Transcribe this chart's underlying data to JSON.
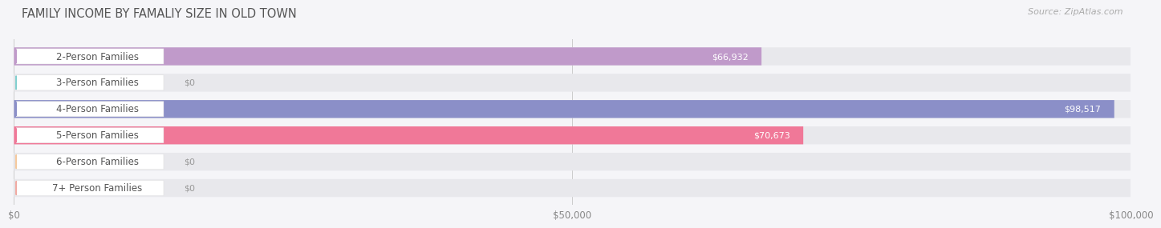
{
  "title": "FAMILY INCOME BY FAMALIY SIZE IN OLD TOWN",
  "source": "Source: ZipAtlas.com",
  "categories": [
    "2-Person Families",
    "3-Person Families",
    "4-Person Families",
    "5-Person Families",
    "6-Person Families",
    "7+ Person Families"
  ],
  "values": [
    66932,
    0,
    98517,
    70673,
    0,
    0
  ],
  "bar_colors": [
    "#c09aca",
    "#7ecece",
    "#8b8fc8",
    "#f07898",
    "#f5c89a",
    "#f0a8a0"
  ],
  "value_labels": [
    "$66,932",
    "$0",
    "$98,517",
    "$70,673",
    "$0",
    "$0"
  ],
  "xlim": [
    0,
    100000
  ],
  "xticks": [
    0,
    50000,
    100000
  ],
  "xticklabels": [
    "$0",
    "$50,000",
    "$100,000"
  ],
  "background_color": "#f5f5f8",
  "bar_background": "#e8e8ec",
  "title_fontsize": 10.5,
  "source_fontsize": 8,
  "label_fontsize": 8.5,
  "value_fontsize": 8
}
